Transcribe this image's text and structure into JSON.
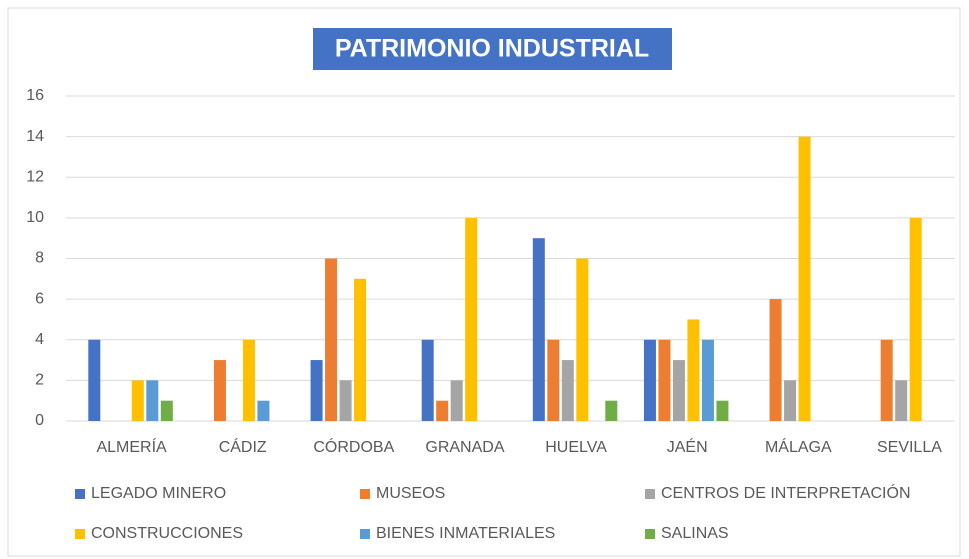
{
  "chart_data": {
    "type": "bar",
    "title": "PATRIMONIO INDUSTRIAL",
    "categories": [
      "ALMERÍA",
      "CÁDIZ",
      "CÓRDOBA",
      "GRANADA",
      "HUELVA",
      "JAÉN",
      "MÁLAGA",
      "SEVILLA"
    ],
    "series": [
      {
        "name": "LEGADO MINERO",
        "color": "#4472c4",
        "values": [
          4,
          0,
          3,
          4,
          9,
          4,
          0,
          0
        ]
      },
      {
        "name": "MUSEOS",
        "color": "#ed7d31",
        "values": [
          0,
          3,
          8,
          1,
          4,
          4,
          6,
          4
        ]
      },
      {
        "name": "CENTROS DE INTERPRETACIÓN",
        "color": "#a5a5a5",
        "values": [
          0,
          0,
          2,
          2,
          3,
          3,
          2,
          2
        ]
      },
      {
        "name": "CONSTRUCCIONES",
        "color": "#ffc000",
        "values": [
          2,
          4,
          7,
          10,
          8,
          5,
          14,
          10
        ]
      },
      {
        "name": "BIENES INMATERIALES",
        "color": "#5b9bd5",
        "values": [
          2,
          1,
          0,
          0,
          0,
          4,
          0,
          0
        ]
      },
      {
        "name": "SALINAS",
        "color": "#70ad47",
        "values": [
          1,
          0,
          0,
          0,
          1,
          1,
          0,
          0
        ]
      }
    ],
    "ylim": [
      0,
      16
    ],
    "yticks": [
      0,
      2,
      4,
      6,
      8,
      10,
      12,
      14,
      16
    ],
    "grid": true,
    "legend": "bottom"
  }
}
